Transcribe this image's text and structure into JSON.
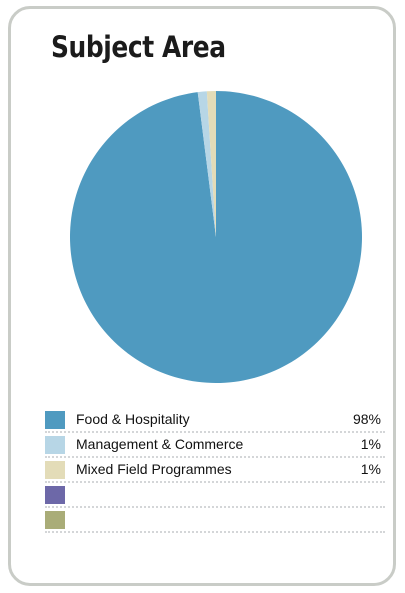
{
  "title": "Subject Area",
  "chart_data": {
    "type": "pie",
    "title": "Subject Area",
    "slices": [
      {
        "label": "Food & Hospitality",
        "value": 98,
        "display": "98%",
        "color": "#4f9ac0"
      },
      {
        "label": "Management & Commerce",
        "value": 1,
        "display": "1%",
        "color": "#b7d6e6"
      },
      {
        "label": "Mixed Field Programmes",
        "value": 1,
        "display": "1%",
        "color": "#e3dcb8"
      }
    ],
    "empty_legend_rows": [
      {
        "color": "#6d68a8"
      },
      {
        "color": "#a9ac78"
      }
    ],
    "legend_position": "bottom"
  }
}
